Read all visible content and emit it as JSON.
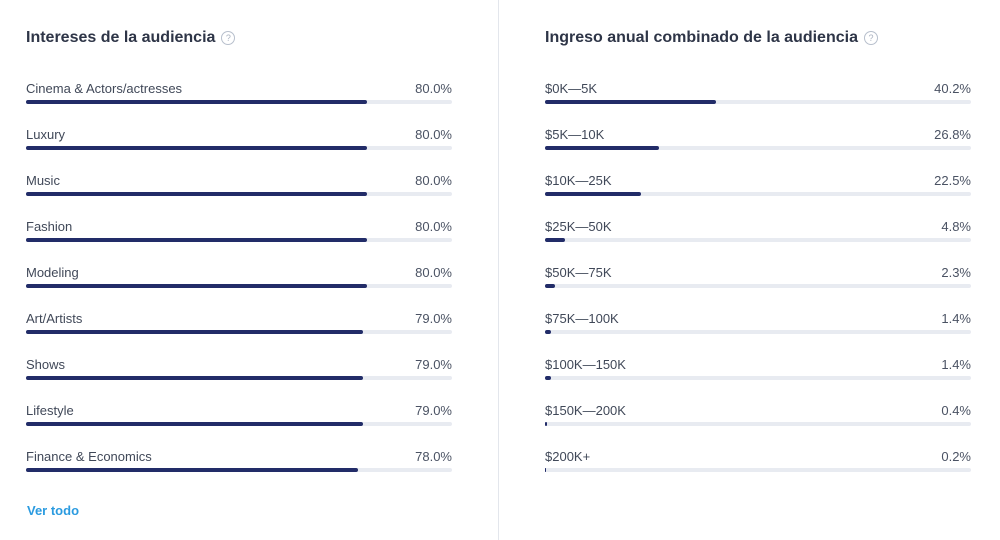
{
  "interests": {
    "title": "Intereses de la audiencia",
    "help_icon": "help-circle-icon",
    "see_all_label": "Ver todo",
    "items": [
      {
        "label": "Cinema & Actors/actresses",
        "value": "80.0%",
        "fraction": 0.8
      },
      {
        "label": "Luxury",
        "value": "80.0%",
        "fraction": 0.8
      },
      {
        "label": "Music",
        "value": "80.0%",
        "fraction": 0.8
      },
      {
        "label": "Fashion",
        "value": "80.0%",
        "fraction": 0.8
      },
      {
        "label": "Modeling",
        "value": "80.0%",
        "fraction": 0.8
      },
      {
        "label": "Art/Artists",
        "value": "79.0%",
        "fraction": 0.79
      },
      {
        "label": "Shows",
        "value": "79.0%",
        "fraction": 0.79
      },
      {
        "label": "Lifestyle",
        "value": "79.0%",
        "fraction": 0.79
      },
      {
        "label": "Finance & Economics",
        "value": "78.0%",
        "fraction": 0.78
      }
    ]
  },
  "income": {
    "title": "Ingreso anual combinado de la audiencia",
    "help_icon": "help-circle-icon",
    "items": [
      {
        "label": "$0K—5K",
        "value": "40.2%",
        "fraction": 0.402
      },
      {
        "label": "$5K—10K",
        "value": "26.8%",
        "fraction": 0.268
      },
      {
        "label": "$10K—25K",
        "value": "22.5%",
        "fraction": 0.225
      },
      {
        "label": "$25K—50K",
        "value": "4.8%",
        "fraction": 0.048
      },
      {
        "label": "$50K—75K",
        "value": "2.3%",
        "fraction": 0.023
      },
      {
        "label": "$75K—100K",
        "value": "1.4%",
        "fraction": 0.014
      },
      {
        "label": "$100K—150K",
        "value": "1.4%",
        "fraction": 0.014
      },
      {
        "label": "$150K—200K",
        "value": "0.4%",
        "fraction": 0.004
      },
      {
        "label": "$200K+",
        "value": "0.2%",
        "fraction": 0.002
      }
    ]
  },
  "colors": {
    "bar_fill": "#222c68",
    "bar_track": "#e8ebf1",
    "link": "#2b9be0"
  }
}
